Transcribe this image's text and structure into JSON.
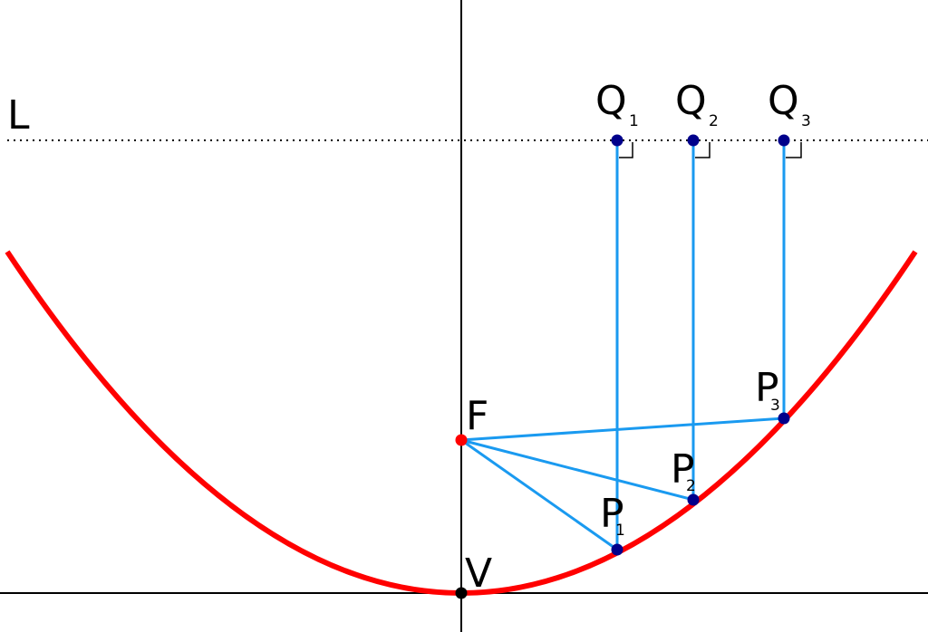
{
  "labels": {
    "directrix": "L",
    "focus": "F",
    "vertex": "V"
  },
  "points": [
    {
      "q_label": "Q",
      "q_sub": "1",
      "p_label": "P",
      "p_sub": "1"
    },
    {
      "q_label": "Q",
      "q_sub": "2",
      "p_label": "P",
      "p_sub": "2"
    },
    {
      "q_label": "Q",
      "q_sub": "3",
      "p_label": "P",
      "p_sub": "3"
    }
  ]
}
